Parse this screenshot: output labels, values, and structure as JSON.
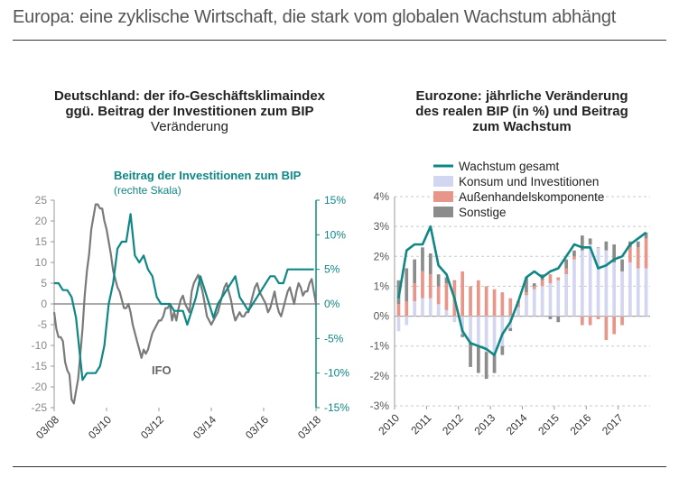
{
  "header": {
    "title": "Europa: eine zyklische Wirtschaft, die stark vom globalen Wachstum abhängt"
  },
  "colors": {
    "teal": "#0f8785",
    "gray": "#7a7a7a",
    "lavender": "#d3d6f0",
    "salmon": "#e9968a",
    "darkgray": "#8c8c8c"
  },
  "chart_data": [
    {
      "type": "line",
      "title_line1": "Deutschland: der ifo-Geschäftsklimaindex",
      "title_line2": "ggü. Beitrag der Investitionen zum BIP",
      "subtitle": "Veränderung",
      "ylim_left": [
        -25,
        25
      ],
      "ylim_right": [
        -15,
        15
      ],
      "yticks_left": [
        "25",
        "20",
        "15",
        "10",
        "5",
        "0",
        "-5",
        "-10",
        "-15",
        "-20",
        "-25"
      ],
      "yticks_right": [
        "15%",
        "10%",
        "5%",
        "0%",
        "-5%",
        "-10%",
        "-15%"
      ],
      "xticks": [
        "03/08",
        "03/10",
        "03/12",
        "03/14",
        "03/16",
        "03/18"
      ],
      "x_range": [
        0,
        120
      ],
      "series": [
        {
          "name": "IFO",
          "label": "IFO",
          "axis": "left",
          "x": [
            0,
            1,
            2,
            3,
            4,
            5,
            6,
            7,
            8,
            9,
            10,
            11,
            12,
            13,
            14,
            15,
            16,
            17,
            18,
            19,
            20,
            21,
            22,
            23,
            24,
            25,
            26,
            27,
            28,
            29,
            30,
            31,
            32,
            33,
            34,
            35,
            36,
            37,
            38,
            39,
            40,
            41,
            42,
            43,
            44,
            45,
            46,
            47,
            48,
            49,
            50,
            51,
            52,
            53,
            54,
            55,
            56,
            57,
            58,
            59,
            60,
            61,
            62,
            63,
            64,
            65,
            66,
            67,
            68,
            69,
            70,
            71,
            72,
            73,
            74,
            75,
            76,
            77,
            78,
            79,
            80,
            81,
            82,
            83,
            84,
            85,
            86,
            87,
            88,
            89,
            90,
            91,
            92,
            93,
            94,
            95,
            96,
            97,
            98,
            99,
            100,
            101,
            102,
            103,
            104,
            105,
            106,
            107,
            108,
            109,
            110,
            111,
            112,
            113,
            114,
            115,
            116,
            117,
            118,
            119,
            120
          ],
          "values": [
            -2,
            -6,
            -8,
            -8,
            -9,
            -14,
            -16,
            -17,
            -23,
            -24,
            -21,
            -18,
            -12,
            -6,
            2,
            8,
            12,
            18,
            21,
            24,
            24,
            23,
            23,
            20,
            18,
            15,
            12,
            8,
            6,
            4,
            3,
            1,
            -1,
            -1,
            0,
            -2,
            -5,
            -7,
            -9,
            -11,
            -13,
            -11,
            -12,
            -11,
            -9,
            -7,
            -6,
            -5,
            -4,
            -4,
            -3,
            -1,
            -1,
            0,
            -4,
            -2,
            -4,
            -1,
            1,
            2,
            0,
            -1,
            -2,
            3,
            5,
            6,
            7,
            5,
            3,
            0,
            -3,
            -4,
            -5,
            -4,
            -3,
            -2,
            0,
            2,
            4,
            5,
            3,
            1,
            -2,
            -4,
            -3,
            -2,
            -3,
            -3,
            -2,
            -2,
            0,
            2,
            4,
            5,
            3,
            2,
            1,
            0,
            -2,
            -1,
            1,
            3,
            0,
            -2,
            -3,
            -1,
            1,
            3,
            4,
            2,
            0,
            3,
            5,
            4,
            2,
            3,
            3,
            5,
            6,
            3,
            0
          ]
        },
        {
          "name": "Beitrag der Investitionen zum BIP",
          "label_line1": "Beitrag der Investitionen zum BIP",
          "label_line2": "(rechte Skala)",
          "axis": "right",
          "x": [
            0,
            2,
            4,
            6,
            8,
            10,
            12,
            13,
            15,
            17,
            19,
            21,
            23,
            25,
            27,
            29,
            31,
            33,
            35,
            37,
            39,
            41,
            43,
            45,
            47,
            49,
            51,
            53,
            55,
            57,
            59,
            61,
            63,
            65,
            67,
            69,
            71,
            73,
            75,
            77,
            79,
            81,
            83,
            85,
            87,
            89,
            91,
            93,
            95,
            97,
            99,
            101,
            103,
            105,
            107,
            109,
            111,
            113,
            115,
            117,
            119
          ],
          "values": [
            3,
            3,
            2,
            2,
            1,
            -2,
            -8,
            -11,
            -10,
            -10,
            -10,
            -9,
            -6,
            0,
            3,
            8,
            9,
            9,
            13,
            7,
            6,
            7,
            5,
            4,
            1,
            0,
            0,
            0,
            -1,
            -1,
            -1,
            -3,
            -1,
            1,
            4,
            2,
            0,
            -2,
            0,
            1,
            2,
            3,
            4,
            1,
            0,
            -1,
            0,
            1,
            2,
            3,
            4,
            4,
            3,
            3,
            5,
            5,
            5,
            5,
            5,
            5,
            5
          ]
        }
      ]
    },
    {
      "type": "bar",
      "title_line1": "Eurozone: jährliche Veränderung",
      "title_line2": "des realen BIP (in %) und Beitrag",
      "title_line3": "zum Wachstum",
      "ylim": [
        -3,
        4
      ],
      "yticks": [
        "4%",
        "3%",
        "2%",
        "1%",
        "0%",
        "-1%",
        "-2%",
        "-3%"
      ],
      "xticks": [
        "2010",
        "2011",
        "2012",
        "2013",
        "2014",
        "2015",
        "2016",
        "2017"
      ],
      "legend": [
        "Wachstum gesamt",
        "Konsum und Investitionen",
        "Außenhandelskomponente",
        "Sonstige"
      ],
      "categories": [
        "2010Q1",
        "2010Q2",
        "2010Q3",
        "2010Q4",
        "2011Q1",
        "2011Q2",
        "2011Q3",
        "2011Q4",
        "2012Q1",
        "2012Q2",
        "2012Q3",
        "2012Q4",
        "2013Q1",
        "2013Q2",
        "2013Q3",
        "2013Q4",
        "2014Q1",
        "2014Q2",
        "2014Q3",
        "2014Q4",
        "2015Q1",
        "2015Q2",
        "2015Q3",
        "2015Q4",
        "2016Q1",
        "2016Q2",
        "2016Q3",
        "2016Q4",
        "2017Q1",
        "2017Q2",
        "2017Q3",
        "2017Q4"
      ],
      "series": [
        {
          "name": "Konsum und Investitionen",
          "values": [
            -0.5,
            -0.3,
            0.5,
            0.6,
            0.6,
            0.4,
            0.2,
            -0.2,
            -0.6,
            -0.9,
            -1.0,
            -1.2,
            -1.3,
            -1.0,
            -0.4,
            0.3,
            0.7,
            0.9,
            1.0,
            1.1,
            1.2,
            1.4,
            1.9,
            2.2,
            2.4,
            2.3,
            2.2,
            1.8,
            1.5,
            1.8,
            1.6,
            1.6
          ]
        },
        {
          "name": "Außenhandelskomponente",
          "values": [
            0.4,
            0.5,
            0.6,
            0.9,
            0.8,
            0.6,
            0.9,
            1.2,
            1.5,
            1.0,
            1.2,
            1.0,
            0.9,
            0.8,
            0.6,
            0.2,
            0.1,
            0.1,
            0.2,
            0.3,
            0.1,
            0.2,
            0.1,
            -0.3,
            -0.3,
            -0.1,
            -0.8,
            -0.6,
            -0.3,
            0.5,
            0.7,
            1.0
          ]
        },
        {
          "name": "Sonstige",
          "values": [
            0.8,
            1.1,
            0.8,
            0.8,
            0.7,
            0.4,
            0.2,
            0.0,
            -0.1,
            -0.8,
            -0.9,
            -0.9,
            -0.6,
            -0.3,
            -0.1,
            0.0,
            0.5,
            0.1,
            0.2,
            -0.1,
            -0.2,
            0.3,
            0.2,
            0.5,
            0.2,
            0.0,
            0.3,
            0.6,
            0.4,
            0.2,
            0.2,
            0.2
          ]
        },
        {
          "name": "Wachstum gesamt",
          "type": "line",
          "values": [
            0.6,
            2.2,
            2.4,
            2.4,
            3.0,
            1.7,
            1.4,
            0.6,
            -0.5,
            -0.9,
            -1.0,
            -1.1,
            -1.3,
            -0.6,
            -0.2,
            0.5,
            1.3,
            1.5,
            1.3,
            1.5,
            1.6,
            2.0,
            2.4,
            2.3,
            2.3,
            1.6,
            1.7,
            1.9,
            2.0,
            2.4,
            2.6,
            2.8
          ]
        }
      ]
    }
  ]
}
